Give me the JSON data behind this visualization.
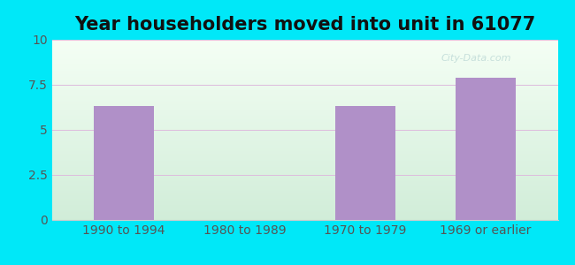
{
  "title": "Year householders moved into unit in 61077",
  "categories": [
    "1990 to 1994",
    "1980 to 1989",
    "1970 to 1979",
    "1969 or earlier"
  ],
  "values": [
    6.3,
    0,
    6.3,
    7.9
  ],
  "bar_color": "#b090c8",
  "bar_width": 0.5,
  "ylim": [
    0,
    10
  ],
  "yticks": [
    0,
    2.5,
    5,
    7.5,
    10
  ],
  "ytick_labels": [
    "0",
    "2.5",
    "5",
    "7.5",
    "10"
  ],
  "figure_bg": "#00e8f8",
  "plot_bg_top_color": "#f0faf0",
  "plot_bg_bottom_color": "#d0edd8",
  "title_fontsize": 15,
  "tick_fontsize": 10,
  "title_fontweight": "bold",
  "grid_color": "#ddbbdd",
  "watermark": "City-Data.com"
}
